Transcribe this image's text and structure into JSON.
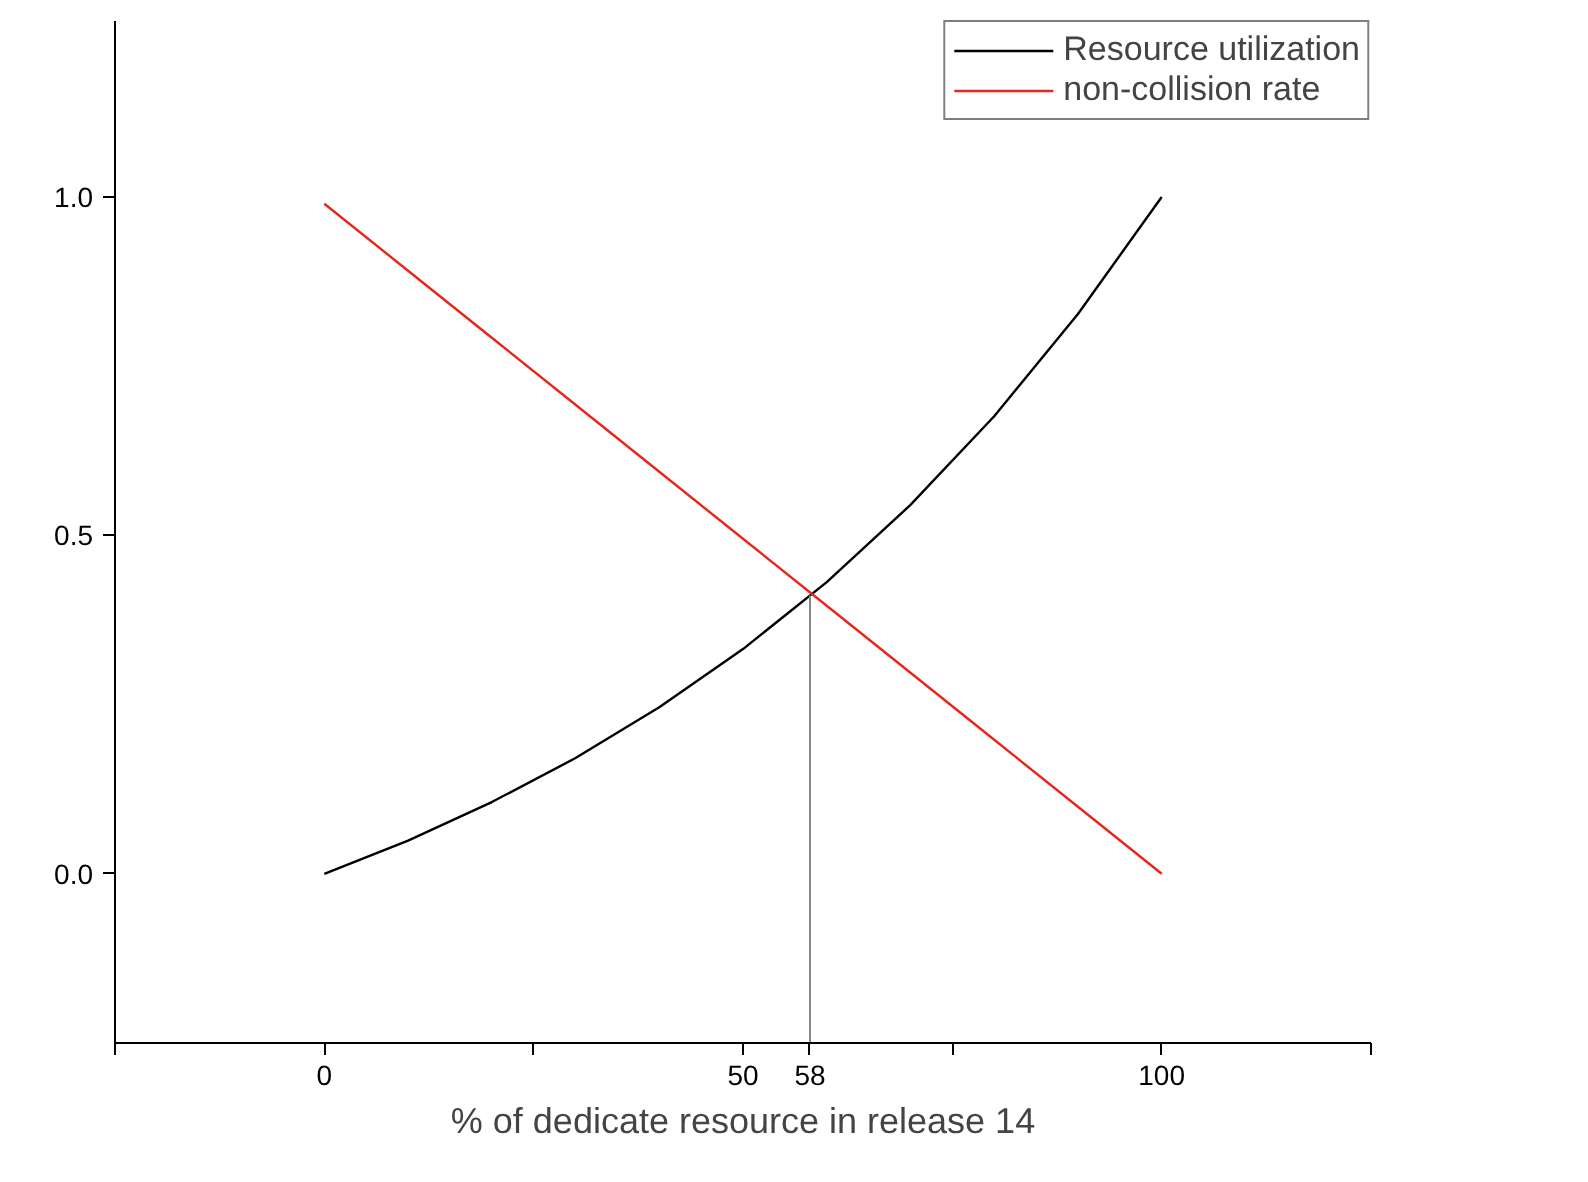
{
  "chart_data": {
    "type": "line",
    "xlabel": "% of dedicate resource in release 14",
    "x": [
      0,
      10,
      20,
      30,
      40,
      50,
      60,
      70,
      80,
      90,
      100
    ],
    "series": [
      {
        "name": "Resource utilization",
        "color": "#000000",
        "values": [
          0,
          0.049,
          0.106,
          0.171,
          0.246,
          0.332,
          0.431,
          0.545,
          0.676,
          0.827,
          1.0
        ]
      },
      {
        "name": "non-collision rate",
        "color": "#e8251f",
        "values": [
          0.99,
          0.891,
          0.792,
          0.693,
          0.594,
          0.495,
          0.396,
          0.297,
          0.198,
          0.099,
          0
        ]
      }
    ],
    "xlim": [
      -25,
      125
    ],
    "xticks": [
      {
        "value": -25,
        "label": null
      },
      0,
      {
        "value": 25,
        "label": null
      },
      50,
      58,
      {
        "value": 75,
        "label": null
      },
      100,
      {
        "value": 125,
        "label": null
      }
    ],
    "ylim": [
      -0.25,
      1.26
    ],
    "yticks": [
      {
        "value": 0,
        "label": "0.0"
      },
      {
        "value": 0.5,
        "label": "0.5"
      },
      {
        "value": 1.0,
        "label": "1.0"
      }
    ],
    "ref_lines": [
      {
        "axis": "x",
        "value": 58,
        "color": "#888888"
      }
    ],
    "grid": false,
    "legend": "top right",
    "marker": "none",
    "line_style": "solid"
  }
}
